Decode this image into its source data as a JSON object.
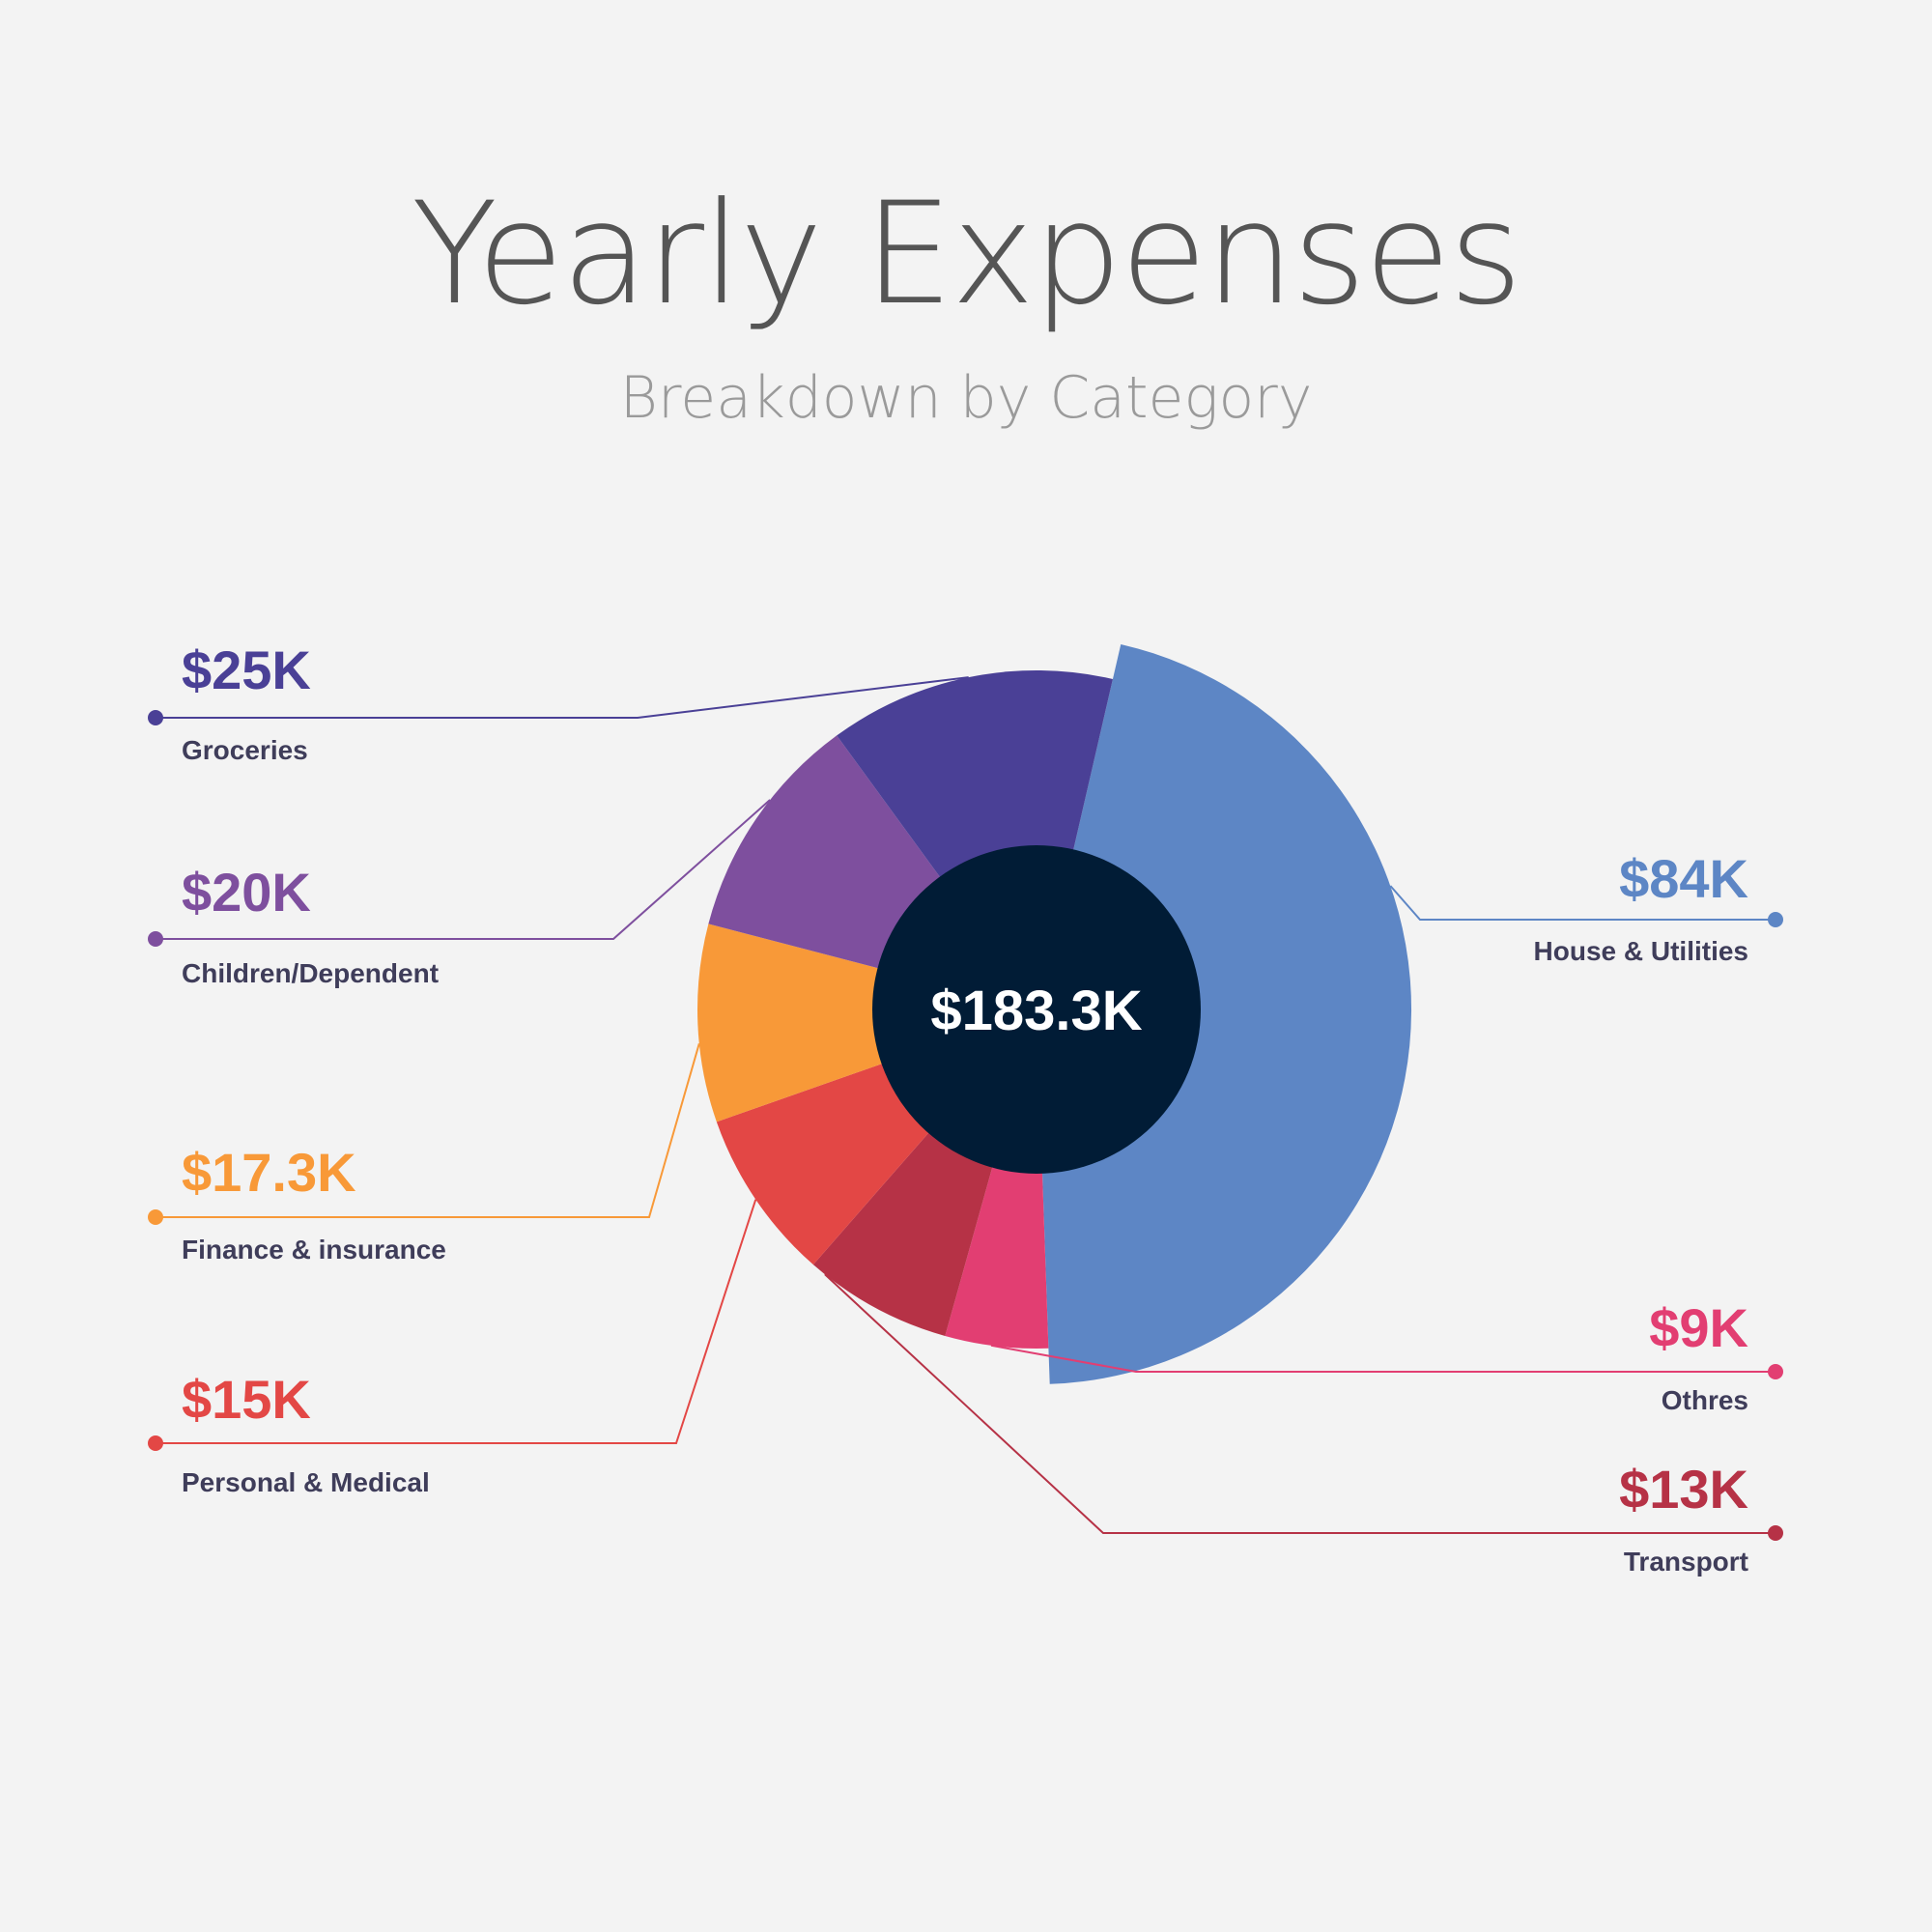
{
  "chart_data": {
    "type": "pie",
    "title": "Yearly Expenses",
    "subtitle": "Breakdown by Category",
    "total_label": "$183.3K",
    "center_color": "#011c36",
    "slices": [
      {
        "category": "House & Utilities",
        "value": 84,
        "value_label": "$84K",
        "color": "#5d86c5"
      },
      {
        "category": "Othres",
        "value": 9,
        "value_label": "$9K",
        "color": "#e23e72"
      },
      {
        "category": "Transport",
        "value": 13,
        "value_label": "$13K",
        "color": "#b63246"
      },
      {
        "category": "Personal & Medical",
        "value": 15,
        "value_label": "$15K",
        "color": "#e34745"
      },
      {
        "category": "Finance & insurance",
        "value": 17.3,
        "value_label": "$17.3K",
        "color": "#f89938"
      },
      {
        "category": "Children/Dependent",
        "value": 20,
        "value_label": "$20K",
        "color": "#7e4f9e"
      },
      {
        "category": "Groceries",
        "value": 25,
        "value_label": "$25K",
        "color": "#4a4096"
      }
    ],
    "legend_text_color": "#3f3d5a"
  }
}
